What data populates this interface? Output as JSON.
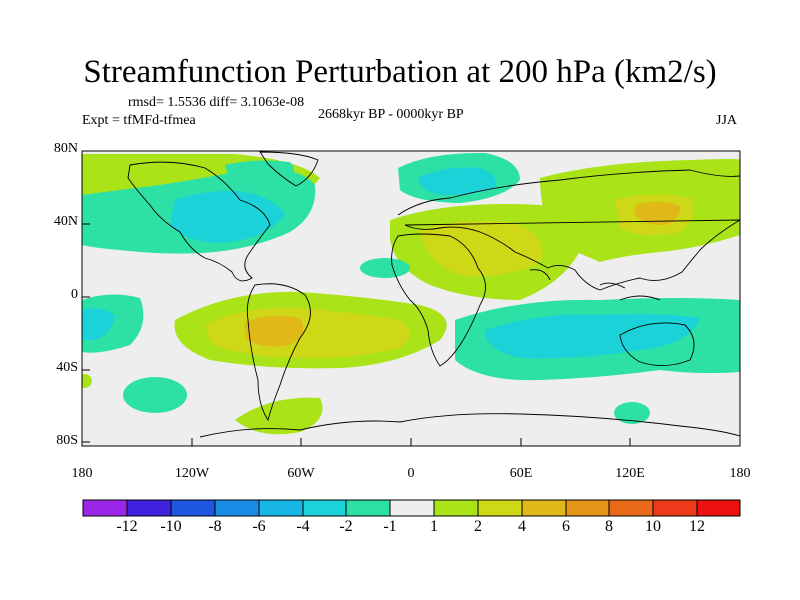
{
  "title": "Streamfunction Perturbation at 200 hPa (km2/s)",
  "stats_text": "rmsd= 1.5536 diff= 3.1063e-08",
  "period": "2668kyr BP - 0000kyr BP",
  "experiment": "Expt = tfMFd-tfmea",
  "season": "JJA",
  "y_ticks": [
    "80N",
    "40N",
    "0",
    "40S",
    "80S"
  ],
  "x_ticks": [
    "180",
    "120W",
    "60W",
    "0",
    "60E",
    "120E",
    "180"
  ],
  "colorbar": {
    "labels": [
      "-12",
      "-10",
      "-8",
      "-6",
      "-4",
      "-2",
      "-1",
      "1",
      "2",
      "4",
      "6",
      "8",
      "10",
      "12"
    ],
    "colors": [
      "#9a27e8",
      "#3e22de",
      "#1e56e0",
      "#1a8ce6",
      "#18b6e6",
      "#1ad2d8",
      "#2ce0a6",
      "#eeeeee",
      "#a9e318",
      "#cfd816",
      "#e0b818",
      "#e69418",
      "#ea6a1a",
      "#ec3a1a",
      "#ee1010"
    ]
  }
}
